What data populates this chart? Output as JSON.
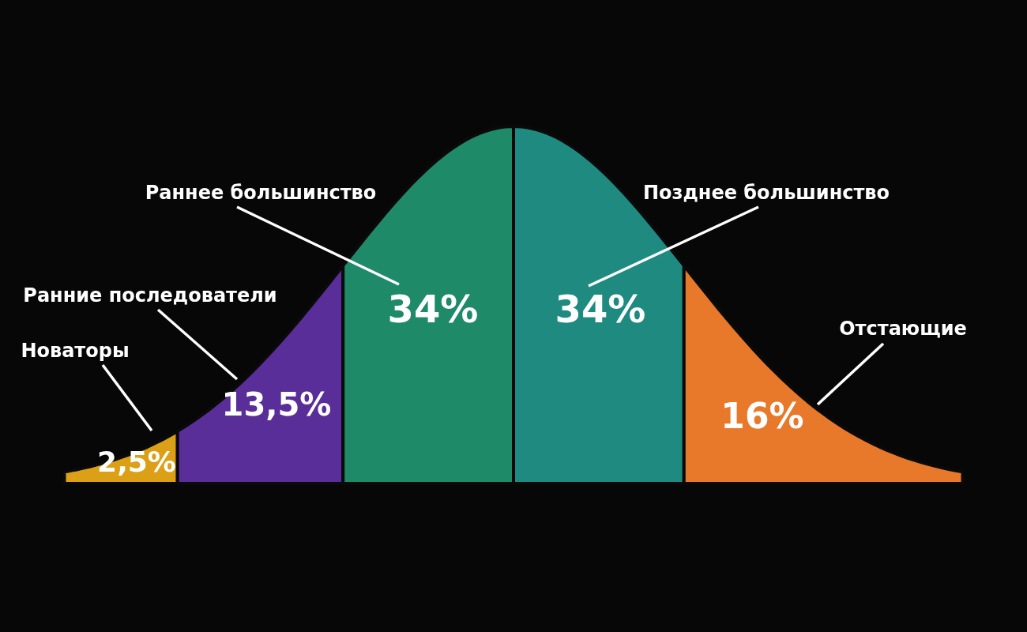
{
  "chart_data": {
    "type": "other",
    "categories": [
      "Новаторы",
      "Ранние последователи",
      "Раннее большинство",
      "Позднее большинство",
      "Отстающие"
    ],
    "values": [
      2.5,
      13.5,
      34,
      34,
      16
    ],
    "value_labels": [
      "2,5%",
      "13,5%",
      "34%",
      "34%",
      "16%"
    ],
    "colors": [
      "#dba015",
      "#5a2e98",
      "#1f8a68",
      "#1f8a80",
      "#e8782a"
    ]
  }
}
